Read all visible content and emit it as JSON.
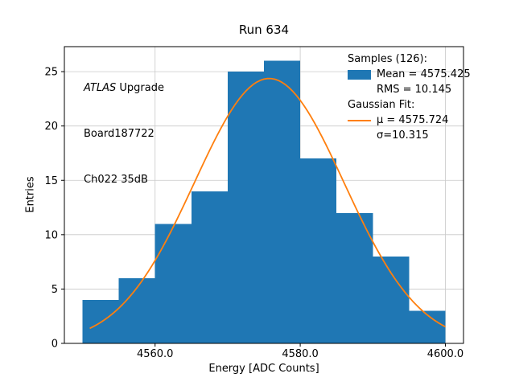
{
  "chart_data": {
    "type": "bar",
    "subtype": "histogram-with-gaussian-fit",
    "title": "Run 634",
    "xlabel": "Energy [ADC Counts]",
    "ylabel": "Entries",
    "xlim": [
      4547.5,
      4602.5
    ],
    "ylim": [
      0,
      27.3
    ],
    "grid": true,
    "xticks": {
      "values": [
        4560,
        4580,
        4600
      ],
      "labels": [
        "4560.0",
        "4580.0",
        "4600.0"
      ]
    },
    "yticks": {
      "values": [
        0,
        5,
        10,
        15,
        20,
        25
      ],
      "labels": [
        "0",
        "5",
        "10",
        "15",
        "20",
        "25"
      ]
    },
    "bins": {
      "edges": [
        4550,
        4555,
        4560,
        4565,
        4570,
        4575,
        4580,
        4585,
        4590,
        4595,
        4600
      ],
      "counts": [
        4,
        6,
        11,
        14,
        25,
        26,
        17,
        12,
        8,
        3
      ]
    },
    "n_samples": 126,
    "hist_stats": {
      "mean": 4575.425,
      "rms": 10.145
    },
    "gaussian_fit": {
      "mu": 4575.724,
      "sigma": 10.315,
      "amplitude": 24.37,
      "x_start": 4551.0,
      "x_end": 4600.0
    },
    "colors": {
      "hist": "#1f77b4",
      "fit": "#ff7f0e",
      "grid": "#c8c8c8",
      "axes": "#000000"
    },
    "annotation": {
      "line1_italic": "ATLAS",
      "line1_rest": " Upgrade",
      "line2": "Board187722",
      "line3": "Ch022 35dB"
    },
    "legend": {
      "position": "upper right",
      "items": [
        {
          "type": "header",
          "text": "Samples (126):"
        },
        {
          "type": "patch",
          "color": "#1f77b4",
          "text": "Mean = 4575.425"
        },
        {
          "type": "indent",
          "text": "RMS = 10.145"
        },
        {
          "type": "header",
          "text": "Gaussian Fit:"
        },
        {
          "type": "line",
          "color": "#ff7f0e",
          "text": "μ = 4575.724"
        },
        {
          "type": "indent",
          "text": "σ=10.315"
        }
      ]
    }
  }
}
